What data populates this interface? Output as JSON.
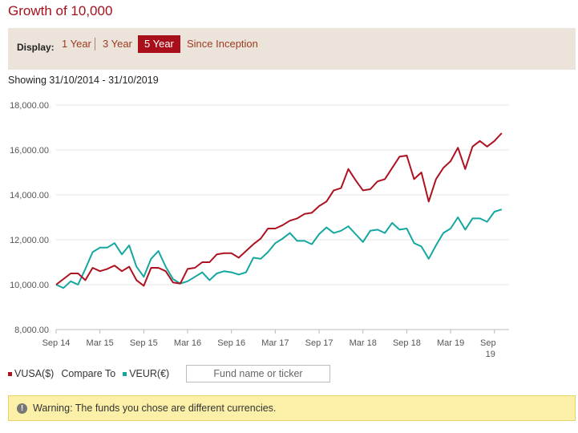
{
  "page_title": "Growth of 10,000",
  "display": {
    "label": "Display:",
    "options": [
      "1 Year",
      "3 Year",
      "5 Year",
      "Since Inception"
    ],
    "active": "5 Year"
  },
  "showing": "Showing 31/10/2014 - 31/10/2019",
  "legend": {
    "series1": "VUSA($)",
    "compare_label": "Compare To",
    "series2": "VEUR(€)",
    "fund_placeholder": "Fund name or ticker"
  },
  "warning": {
    "icon": "exclamation-icon",
    "text": "Warning: The funds you chose are different currencies."
  },
  "colors": {
    "accent": "#a90f1a",
    "vusa": "#ad1220",
    "veur": "#14a7a0"
  },
  "chart_data": {
    "type": "line",
    "x_start": "2014-10",
    "x_step": "month",
    "xticks": [
      "Sep 14",
      "Mar 15",
      "Sep 15",
      "Mar 16",
      "Sep 16",
      "Mar 17",
      "Sep 17",
      "Mar 18",
      "Sep 18",
      "Mar 19",
      "Sep 19"
    ],
    "yticks": [
      "8,000.00",
      "10,000.00",
      "12,000.00",
      "14,000.00",
      "16,000.00",
      "18,000.00"
    ],
    "ylim": [
      8000,
      18000
    ],
    "grid": "horizontal",
    "series": [
      {
        "name": "VUSA($)",
        "values": [
          10000,
          10250,
          10500,
          10500,
          10200,
          10750,
          10600,
          10700,
          10850,
          10600,
          10800,
          10200,
          9950,
          10750,
          10750,
          10600,
          10100,
          10050,
          10700,
          10750,
          11000,
          11000,
          11350,
          11400,
          11400,
          11200,
          11500,
          11800,
          12050,
          12500,
          12500,
          12650,
          12850,
          12950,
          13150,
          13200,
          13500,
          13700,
          14200,
          14300,
          15150,
          14650,
          14200,
          14250,
          14600,
          14700,
          15200,
          15700,
          15750,
          14700,
          15000,
          13700,
          14700,
          15200,
          15500,
          16100,
          15150,
          16150,
          16400,
          16150,
          16400,
          16750
        ]
      },
      {
        "name": "VEUR(€)",
        "values": [
          10000,
          9850,
          10150,
          10000,
          10700,
          11450,
          11650,
          11650,
          11850,
          11350,
          11750,
          10800,
          10350,
          11150,
          11500,
          10800,
          10250,
          10050,
          10150,
          10350,
          10550,
          10200,
          10500,
          10600,
          10550,
          10450,
          10550,
          11200,
          11150,
          11450,
          11850,
          12050,
          12300,
          11950,
          11950,
          11800,
          12250,
          12550,
          12300,
          12400,
          12600,
          12250,
          11900,
          12400,
          12450,
          12300,
          12750,
          12450,
          12500,
          11850,
          11700,
          11150,
          11750,
          12300,
          12500,
          13000,
          12450,
          12950,
          12950,
          12800,
          13250,
          13350
        ]
      }
    ]
  }
}
